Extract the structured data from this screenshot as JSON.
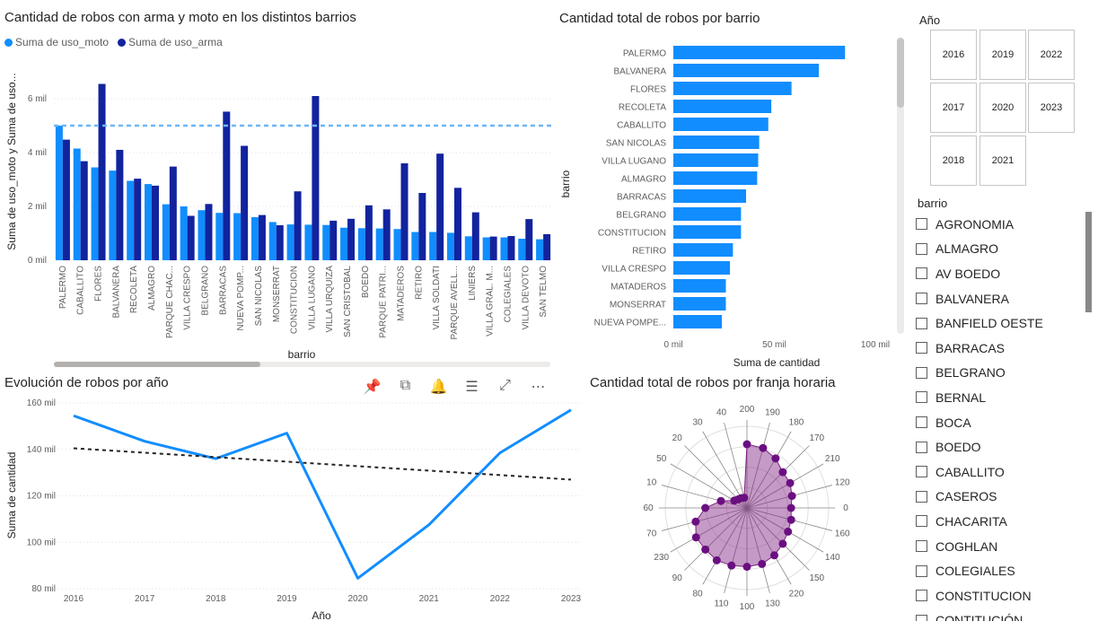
{
  "charts": {
    "chart_data": [
      {
        "type": "bar",
        "title": "Cantidad de robos con arma y moto en los distintos barrios",
        "xlabel": "barrio",
        "ylabel": "Suma de uso_moto y Suma de uso...",
        "ylim": [
          0,
          7000
        ],
        "yticks": [
          "0 mil",
          "2 mil",
          "4 mil",
          "6 mil"
        ],
        "legend": "top-left",
        "reference_line": 5000,
        "categories": [
          "PALERMO",
          "CABALLITO",
          "FLORES",
          "BALVANERA",
          "RECOLETA",
          "ALMAGRO",
          "PARQUE CHAC...",
          "VILLA CRESPO",
          "BELGRANO",
          "BARRACAS",
          "NUEVA POMP...",
          "SAN NICOLAS",
          "MONSERRAT",
          "CONSTITUCION",
          "VILLA LUGANO",
          "VILLA URQUIZA",
          "SAN CRISTOBAL",
          "BOEDO",
          "PARQUE PATRI...",
          "MATADEROS",
          "RETIRO",
          "VILLA SOLDATI",
          "PARQUE AVELL...",
          "LINIERS",
          "VILLA GRAL. M...",
          "COLEGIALES",
          "VILLA DEVOTO",
          "SAN TELMO"
        ],
        "series": [
          {
            "name": "Suma de uso_moto",
            "color": "#118dff",
            "values": [
              5000,
              4150,
              3450,
              3330,
              2950,
              2830,
              2080,
              2000,
              1860,
              1760,
              1750,
              1600,
              1420,
              1330,
              1320,
              1310,
              1210,
              1190,
              1180,
              1160,
              1050,
              1050,
              1020,
              890,
              850,
              850,
              800,
              780
            ]
          },
          {
            "name": "Suma de uso_arma",
            "color": "#12239e",
            "values": [
              4480,
              3680,
              6550,
              4100,
              3030,
              2770,
              3480,
              1650,
              2090,
              5520,
              4250,
              1680,
              1300,
              2560,
              6100,
              1470,
              1540,
              2040,
              1890,
              3600,
              2500,
              3960,
              2690,
              1780,
              880,
              900,
              1530,
              970
            ]
          }
        ]
      },
      {
        "type": "bar",
        "orientation": "horizontal",
        "title": "Cantidad total de robos por barrio",
        "xlabel": "Suma de cantidad",
        "ylabel": "barrio",
        "xlim": [
          0,
          100000
        ],
        "xticks": [
          "0 mil",
          "50 mil",
          "100 mil"
        ],
        "color": "#118dff",
        "categories": [
          "PALERMO",
          "BALVANERA",
          "FLORES",
          "RECOLETA",
          "CABALLITO",
          "SAN NICOLAS",
          "VILLA LUGANO",
          "ALMAGRO",
          "BARRACAS",
          "BELGRANO",
          "CONSTITUCION",
          "RETIRO",
          "VILLA CRESPO",
          "MATADEROS",
          "MONSERRAT",
          "NUEVA POMPE..."
        ],
        "values": [
          85000,
          72000,
          58500,
          48500,
          47000,
          42500,
          42000,
          41500,
          36000,
          33500,
          33500,
          29500,
          28000,
          26000,
          26000,
          24000
        ]
      },
      {
        "type": "line",
        "title": "Evolución de robos por año",
        "xlabel": "Año",
        "ylabel": "Suma de cantidad",
        "ylim": [
          80000,
          160000
        ],
        "yticks": [
          "80 mil",
          "100 mil",
          "120 mil",
          "140 mil",
          "160 mil"
        ],
        "x": [
          "2016",
          "2017",
          "2018",
          "2019",
          "2020",
          "2021",
          "2022",
          "2023"
        ],
        "series": [
          {
            "color": "#118dff",
            "values": [
              154500,
              143500,
              136000,
              147000,
              84500,
              107500,
              138500,
              157000
            ]
          }
        ],
        "trend": {
          "start": 140500,
          "end": 127000
        }
      },
      {
        "type": "radar",
        "title": "Cantidad total de robos por franja horaria",
        "labels": [
          "200",
          "190",
          "180",
          "170",
          "210",
          "120",
          "0",
          "160",
          "140",
          "150",
          "220",
          "130",
          "100",
          "110",
          "80",
          "90",
          "230",
          "70",
          "60",
          "10",
          "50",
          "20",
          "30",
          "40"
        ],
        "values": [
          0.78,
          0.76,
          0.7,
          0.62,
          0.61,
          0.57,
          0.54,
          0.56,
          0.58,
          0.62,
          0.67,
          0.71,
          0.72,
          0.73,
          0.74,
          0.72,
          0.72,
          0.65,
          0.51,
          0.33,
          0.18,
          0.15,
          0.14,
          0.13
        ],
        "color": "#7e1e80"
      }
    ]
  },
  "slicers": {
    "year": {
      "title": "Año",
      "items": [
        "2016",
        "2019",
        "2022",
        "2017",
        "2020",
        "2023",
        "2018",
        "2021"
      ]
    },
    "barrio": {
      "title": "barrio",
      "items": [
        "AGRONOMIA",
        "ALMAGRO",
        "AV BOEDO",
        "BALVANERA",
        "BANFIELD OESTE",
        "BARRACAS",
        "BELGRANO",
        "BERNAL",
        "BOCA",
        "BOEDO",
        "CABALLITO",
        "CASEROS",
        "CHACARITA",
        "COGHLAN",
        "COLEGIALES",
        "CONSTITUCION",
        "CONTITUCIÓN"
      ]
    }
  },
  "toolbar": {
    "icons": [
      "pin-icon",
      "copy-icon",
      "bell-icon",
      "filter-icon",
      "focus-mode-icon",
      "more-options-icon"
    ]
  }
}
